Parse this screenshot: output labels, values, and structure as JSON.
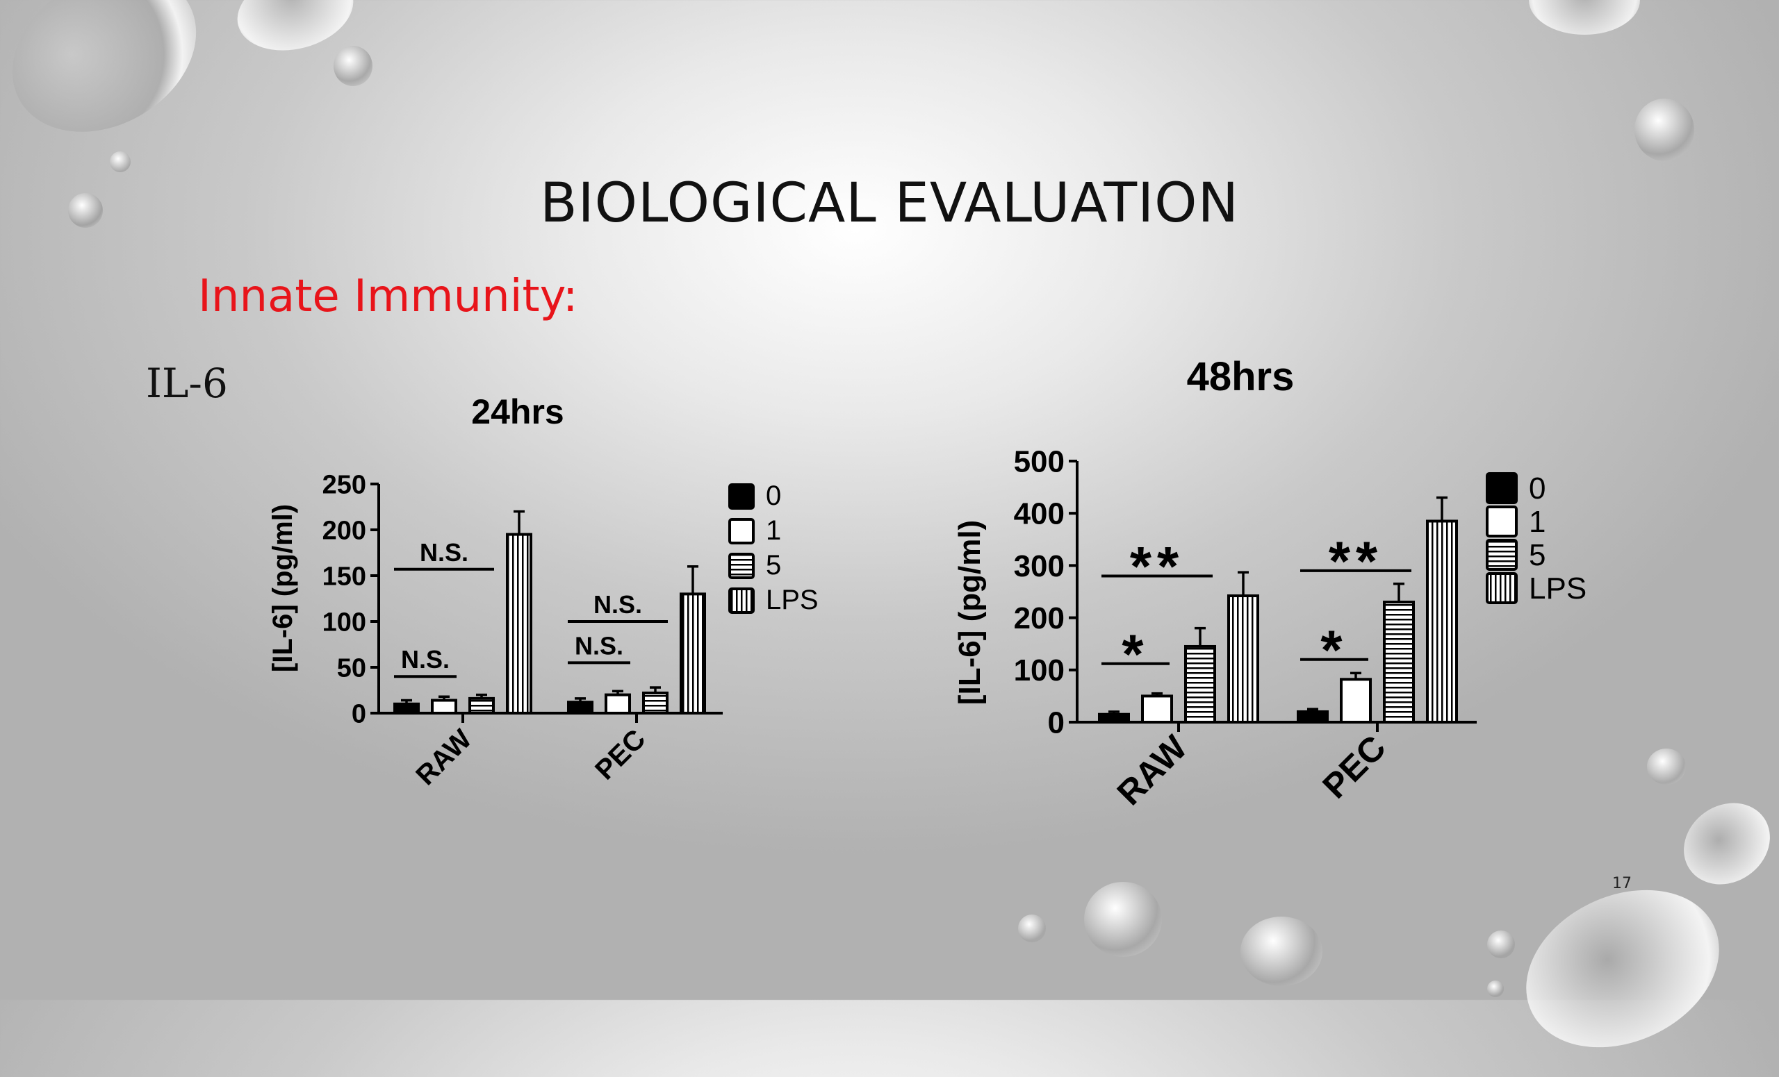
{
  "slide": {
    "title": "BIOLOGICAL EVALUATION",
    "subtitle": "Innate Immunity:",
    "cytokine_label": "IL-6",
    "page_number": "17",
    "title_color": "#111111",
    "subtitle_color": "#e8141a"
  },
  "chart_data": [
    {
      "type": "bar",
      "title": "24hrs",
      "ylabel": "[IL-6] (pg/ml)",
      "xlabel": "",
      "ylim": [
        0,
        250
      ],
      "yticks": [
        "0",
        "50",
        "100",
        "150",
        "200",
        "250"
      ],
      "categories": [
        "RAW",
        "PEC"
      ],
      "series": [
        {
          "name": "0",
          "fill": "solid",
          "values": [
            10,
            12
          ],
          "errors": [
            4,
            4
          ]
        },
        {
          "name": "1",
          "fill": "open",
          "values": [
            14,
            20
          ],
          "errors": [
            4,
            4
          ]
        },
        {
          "name": "5",
          "fill": "horizontal-lines",
          "values": [
            16,
            22
          ],
          "errors": [
            4,
            6
          ]
        },
        {
          "name": "LPS",
          "fill": "vertical-lines",
          "values": [
            195,
            130
          ],
          "errors": [
            25,
            30
          ]
        }
      ],
      "annotations": [
        {
          "text": "N.S.",
          "group": "RAW",
          "from_series": 0,
          "to_series": 1,
          "level": 40
        },
        {
          "text": "N.S.",
          "group": "RAW",
          "from_series": 0,
          "to_series": 2,
          "level": 157
        },
        {
          "text": "N.S.",
          "group": "PEC",
          "from_series": 0,
          "to_series": 1,
          "level": 55
        },
        {
          "text": "N.S.",
          "group": "PEC",
          "from_series": 0,
          "to_series": 2,
          "level": 100
        }
      ],
      "legend": "right"
    },
    {
      "type": "bar",
      "title": "48hrs",
      "ylabel": "[IL-6] (pg/ml)",
      "xlabel": "",
      "ylim": [
        0,
        500
      ],
      "yticks": [
        "0",
        "100",
        "200",
        "300",
        "400",
        "500"
      ],
      "categories": [
        "RAW",
        "PEC"
      ],
      "series": [
        {
          "name": "0",
          "fill": "solid",
          "values": [
            15,
            20
          ],
          "errors": [
            5,
            5
          ]
        },
        {
          "name": "1",
          "fill": "open",
          "values": [
            50,
            82
          ],
          "errors": [
            5,
            12
          ]
        },
        {
          "name": "5",
          "fill": "horizontal-lines",
          "values": [
            145,
            230
          ],
          "errors": [
            35,
            35
          ]
        },
        {
          "name": "LPS",
          "fill": "vertical-lines",
          "values": [
            242,
            385
          ],
          "errors": [
            45,
            45
          ]
        }
      ],
      "annotations": [
        {
          "text": "*",
          "group": "RAW",
          "from_series": 0,
          "to_series": 1,
          "level": 112
        },
        {
          "text": "**",
          "group": "RAW",
          "from_series": 0,
          "to_series": 2,
          "level": 280
        },
        {
          "text": "*",
          "group": "PEC",
          "from_series": 0,
          "to_series": 1,
          "level": 120
        },
        {
          "text": "**",
          "group": "PEC",
          "from_series": 0,
          "to_series": 2,
          "level": 290
        }
      ],
      "legend": "right"
    }
  ]
}
